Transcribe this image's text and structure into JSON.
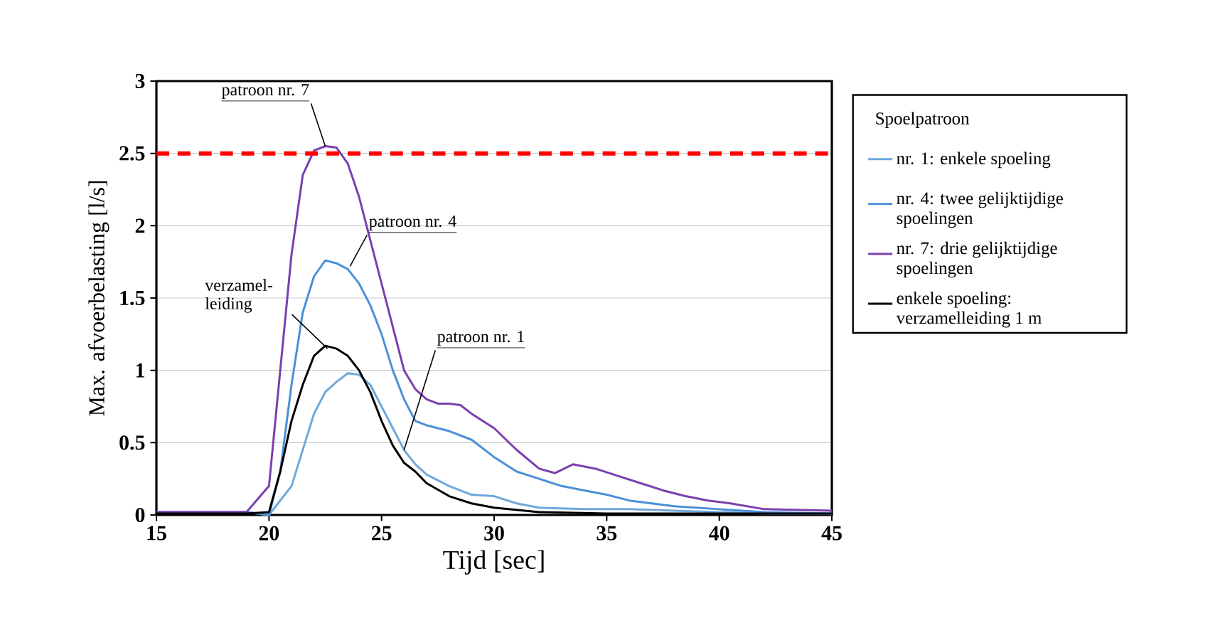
{
  "chart_data": {
    "type": "line",
    "xlabel": "Tijd [sec]",
    "ylabel": "Max. afvoerbelasting   [l/s]",
    "legend_title": "Spoelpatroon",
    "xlim": [
      15,
      45
    ],
    "ylim": [
      0,
      3
    ],
    "xticks": [
      15,
      20,
      25,
      30,
      35,
      40,
      45
    ],
    "yticks": [
      0,
      {
        "value": 0.5,
        "label": "0.5"
      },
      1,
      {
        "value": 1.5,
        "label": "1.5"
      },
      2,
      {
        "value": 2.5,
        "label": "2.5"
      },
      3
    ],
    "grid": "y",
    "legend": "right",
    "marker": "none",
    "line_style": "solid",
    "ref_lines": [
      {
        "axis": "y",
        "value": 2.5,
        "color": "#ff0000",
        "line_style": "dashed"
      }
    ],
    "annotations": [
      {
        "text": "patroon nr. 7",
        "x": 22.5,
        "y": 2.55
      },
      {
        "text": "patroon nr. 4",
        "x": 23.6,
        "y": 1.72
      },
      {
        "text": "verzamel-leiding",
        "x": 22.6,
        "y": 1.15
      },
      {
        "text": "patroon nr. 1",
        "x": 26,
        "y": 0.45
      }
    ],
    "series": [
      {
        "name": "nr. 1: enkele spoeling",
        "color": "#6fa8dc",
        "x": [
          15,
          17,
          19,
          20,
          21,
          21.5,
          22,
          22.5,
          23,
          23.5,
          24,
          24.5,
          25,
          25.5,
          26,
          26.5,
          27,
          28,
          29,
          30,
          31,
          32,
          34,
          36,
          38,
          40,
          42,
          45
        ],
        "values": [
          0.02,
          0.02,
          0.02,
          0.0,
          0.2,
          0.45,
          0.7,
          0.85,
          0.92,
          0.98,
          0.97,
          0.9,
          0.75,
          0.6,
          0.45,
          0.35,
          0.28,
          0.2,
          0.14,
          0.13,
          0.08,
          0.05,
          0.04,
          0.04,
          0.03,
          0.02,
          0.01,
          0.01
        ]
      },
      {
        "name": "nr. 4: twee gelijktijdige spoelingen",
        "color": "#4a90d9",
        "x": [
          15,
          17,
          19,
          20,
          20.5,
          21,
          21.5,
          22,
          22.5,
          23,
          23.5,
          24,
          24.5,
          25,
          25.5,
          26,
          26.5,
          27,
          28,
          29,
          30,
          31,
          32,
          33,
          34,
          35,
          36,
          37,
          38,
          40,
          42,
          45
        ],
        "values": [
          0.02,
          0.02,
          0.02,
          0.0,
          0.3,
          0.9,
          1.4,
          1.65,
          1.76,
          1.74,
          1.7,
          1.6,
          1.45,
          1.25,
          1.0,
          0.8,
          0.65,
          0.62,
          0.58,
          0.52,
          0.4,
          0.3,
          0.25,
          0.2,
          0.17,
          0.14,
          0.1,
          0.08,
          0.06,
          0.04,
          0.02,
          0.01
        ]
      },
      {
        "name": "nr. 7: drie  gelijktijdige spoelingen",
        "color": "#7b3fb0",
        "x": [
          15,
          17,
          19,
          20,
          20.5,
          21,
          21.5,
          22,
          22.5,
          23,
          23.5,
          24,
          24.5,
          25,
          25.5,
          26,
          26.5,
          27,
          27.5,
          28,
          28.5,
          29,
          30,
          31,
          32,
          32.7,
          33.5,
          34.5,
          35.5,
          36.5,
          37.5,
          38.5,
          39.5,
          40.5,
          42,
          45
        ],
        "values": [
          0.02,
          0.02,
          0.02,
          0.2,
          1.0,
          1.8,
          2.35,
          2.52,
          2.55,
          2.54,
          2.43,
          2.2,
          1.9,
          1.6,
          1.3,
          1.0,
          0.87,
          0.8,
          0.77,
          0.77,
          0.76,
          0.7,
          0.6,
          0.45,
          0.32,
          0.29,
          0.35,
          0.32,
          0.27,
          0.22,
          0.17,
          0.13,
          0.1,
          0.08,
          0.04,
          0.03
        ]
      },
      {
        "name": "enkele spoeling: verzamelleiding 1 m",
        "color": "#000000",
        "x": [
          15,
          17,
          19,
          20,
          20.5,
          21,
          21.5,
          22,
          22.5,
          23,
          23.5,
          24,
          24.5,
          25,
          25.5,
          26,
          26.5,
          27,
          28,
          29,
          30,
          32,
          35,
          40,
          45
        ],
        "values": [
          0.01,
          0.01,
          0.01,
          0.02,
          0.3,
          0.65,
          0.9,
          1.1,
          1.17,
          1.15,
          1.1,
          1.0,
          0.85,
          0.65,
          0.48,
          0.36,
          0.3,
          0.22,
          0.13,
          0.08,
          0.05,
          0.02,
          0.01,
          0.01,
          0.01
        ]
      }
    ]
  }
}
